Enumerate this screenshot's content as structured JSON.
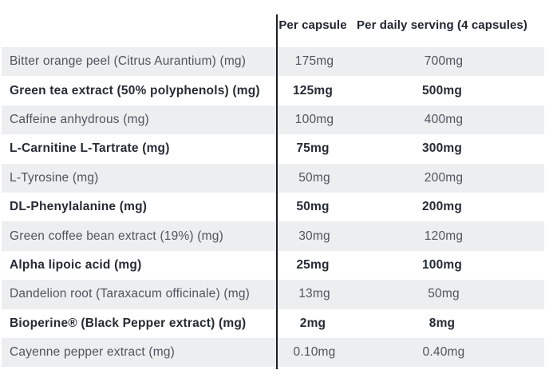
{
  "table": {
    "columns": {
      "per_capsule": "Per capsule",
      "per_daily_serving": "Per daily serving (4 capsules)"
    },
    "rows": [
      {
        "name": "Bitter orange peel (Citrus Aurantium) (mg)",
        "per_capsule": "175mg",
        "per_daily_serving": "700mg"
      },
      {
        "name": "Green tea extract (50% polyphenols) (mg)",
        "per_capsule": "125mg",
        "per_daily_serving": "500mg"
      },
      {
        "name": "Caffeine anhydrous (mg)",
        "per_capsule": "100mg",
        "per_daily_serving": "400mg"
      },
      {
        "name": "L-Carnitine L-Tartrate (mg)",
        "per_capsule": "75mg",
        "per_daily_serving": "300mg"
      },
      {
        "name": "L-Tyrosine (mg)",
        "per_capsule": "50mg",
        "per_daily_serving": "200mg"
      },
      {
        "name": "DL-Phenylalanine (mg)",
        "per_capsule": "50mg",
        "per_daily_serving": "200mg"
      },
      {
        "name": "Green coffee bean extract (19%) (mg)",
        "per_capsule": "30mg",
        "per_daily_serving": "120mg"
      },
      {
        "name": "Alpha lipoic acid (mg)",
        "per_capsule": "25mg",
        "per_daily_serving": "100mg"
      },
      {
        "name": "Dandelion root (Taraxacum officinale) (mg)",
        "per_capsule": "13mg",
        "per_daily_serving": "50mg"
      },
      {
        "name": "Bioperine® (Black Pepper extract) (mg)",
        "per_capsule": "2mg",
        "per_daily_serving": "8mg"
      },
      {
        "name": "Cayenne pepper extract (mg)",
        "per_capsule": "0.10mg",
        "per_daily_serving": "0.40mg"
      }
    ]
  },
  "colors": {
    "row_alt_bg": "#eceef0",
    "text_regular": "#4f545d",
    "text_emphasis": "#262b34",
    "divider": "#1b1f26",
    "background": "#ffffff"
  }
}
